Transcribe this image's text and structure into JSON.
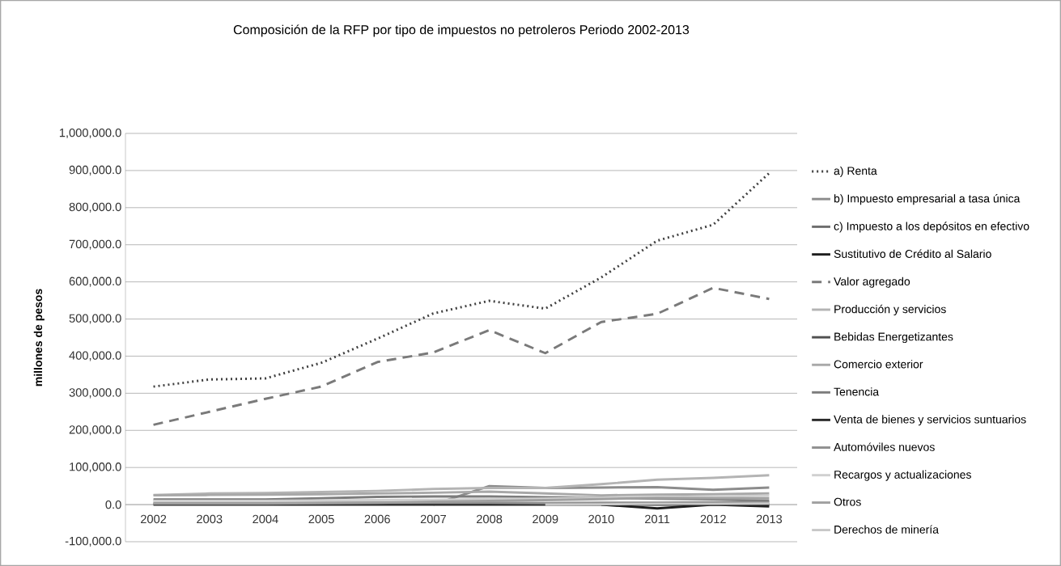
{
  "chart_data": {
    "type": "line",
    "title": "Composición de la RFP por tipo de impuestos no petroleros Periodo 2002-2013",
    "ylabel": "millones de pesos",
    "categories": [
      "2002",
      "2003",
      "2004",
      "2005",
      "2006",
      "2007",
      "2008",
      "2009",
      "2010",
      "2011",
      "2012",
      "2013"
    ],
    "ylim": [
      -100000,
      1000000
    ],
    "yticks": [
      {
        "value": -100000,
        "label": "-100,000.0"
      },
      {
        "value": 0,
        "label": "0.0"
      },
      {
        "value": 100000,
        "label": "100,000.0"
      },
      {
        "value": 200000,
        "label": "200,000.0"
      },
      {
        "value": 300000,
        "label": "300,000.0"
      },
      {
        "value": 400000,
        "label": "400,000.0"
      },
      {
        "value": 500000,
        "label": "500,000.0"
      },
      {
        "value": 600000,
        "label": "600,000.0"
      },
      {
        "value": 700000,
        "label": "700,000.0"
      },
      {
        "value": 800000,
        "label": "800,000.0"
      },
      {
        "value": 900000,
        "label": "900,000.0"
      },
      {
        "value": 1000000,
        "label": "1,000,000.0"
      }
    ],
    "grid": "y",
    "legend": "right",
    "marker": "none",
    "series": [
      {
        "name": "a) Renta",
        "color": "#404040",
        "line_style": "dotted",
        "values": [
          318000,
          337000,
          340000,
          382000,
          447000,
          515000,
          549000,
          528000,
          612000,
          711000,
          754000,
          893000
        ]
      },
      {
        "name": "b) Impuesto empresarial a tasa única",
        "color": "#8c8c8c",
        "values": [
          null,
          null,
          null,
          null,
          null,
          0,
          50000,
          45000,
          46000,
          47000,
          40000,
          46000
        ]
      },
      {
        "name": "c) Impuesto a los depósitos en efectivo",
        "color": "#6e6e6e",
        "values": [
          null,
          null,
          null,
          null,
          null,
          null,
          null,
          null,
          null,
          null,
          null,
          null
        ]
      },
      {
        "name": "Sustitutivo de Crédito al Salario",
        "color": "#1e1e1e",
        "values": [
          null,
          null,
          null,
          null,
          null,
          null,
          null,
          null,
          0,
          -10000,
          0,
          -5000
        ]
      },
      {
        "name": "Valor agregado",
        "color": "#7a7a7a",
        "line_style": "dashed",
        "values": [
          215000,
          250000,
          285000,
          318000,
          384000,
          410000,
          470000,
          408000,
          492000,
          514000,
          584000,
          554000
        ]
      },
      {
        "name": "Producción y servicios",
        "color": "#b4b4b4",
        "values": [
          26000,
          30000,
          31000,
          34000,
          37000,
          42000,
          45000,
          45000,
          55000,
          67000,
          72000,
          79000
        ]
      },
      {
        "name": "Bebidas Energetizantes",
        "color": "#505050",
        "values": [
          null,
          null,
          null,
          null,
          null,
          null,
          null,
          null,
          null,
          null,
          null,
          null
        ]
      },
      {
        "name": "Comercio exterior",
        "color": "#a8a8a8",
        "values": [
          25000,
          26000,
          27000,
          28000,
          30000,
          32000,
          35000,
          30000,
          25000,
          27000,
          28000,
          30000
        ]
      },
      {
        "name": "Tenencia",
        "color": "#7c7c7c",
        "values": [
          14000,
          14000,
          14000,
          17000,
          21000,
          22000,
          22000,
          20000,
          18000,
          16000,
          14000,
          10000
        ]
      },
      {
        "name": "Venta de bienes y servicios suntuarios",
        "color": "#2a2a2a",
        "values": [
          0,
          0,
          0,
          0,
          0,
          0,
          0,
          0,
          0,
          0,
          0,
          0
        ]
      },
      {
        "name": "Automóviles nuevos",
        "color": "#909090",
        "values": [
          5000,
          5000,
          5000,
          5000,
          5000,
          5000,
          5000,
          4000,
          5000,
          5000,
          6000,
          6000
        ]
      },
      {
        "name": "Recargos y actualizaciones",
        "color": "#d0d0d0",
        "values": [
          10000,
          10000,
          10000,
          11000,
          12000,
          13000,
          15000,
          16000,
          18000,
          20000,
          22000,
          24000
        ]
      },
      {
        "name": "Otros",
        "color": "#a0a0a0",
        "values": [
          3000,
          3000,
          3000,
          4000,
          5000,
          8000,
          10000,
          12000,
          15000,
          18000,
          17000,
          17000
        ]
      },
      {
        "name": "Derechos de minería",
        "color": "#c8c8c8",
        "values": [
          null,
          null,
          null,
          null,
          null,
          null,
          null,
          0,
          1000,
          2000,
          2000,
          3000
        ]
      }
    ]
  }
}
